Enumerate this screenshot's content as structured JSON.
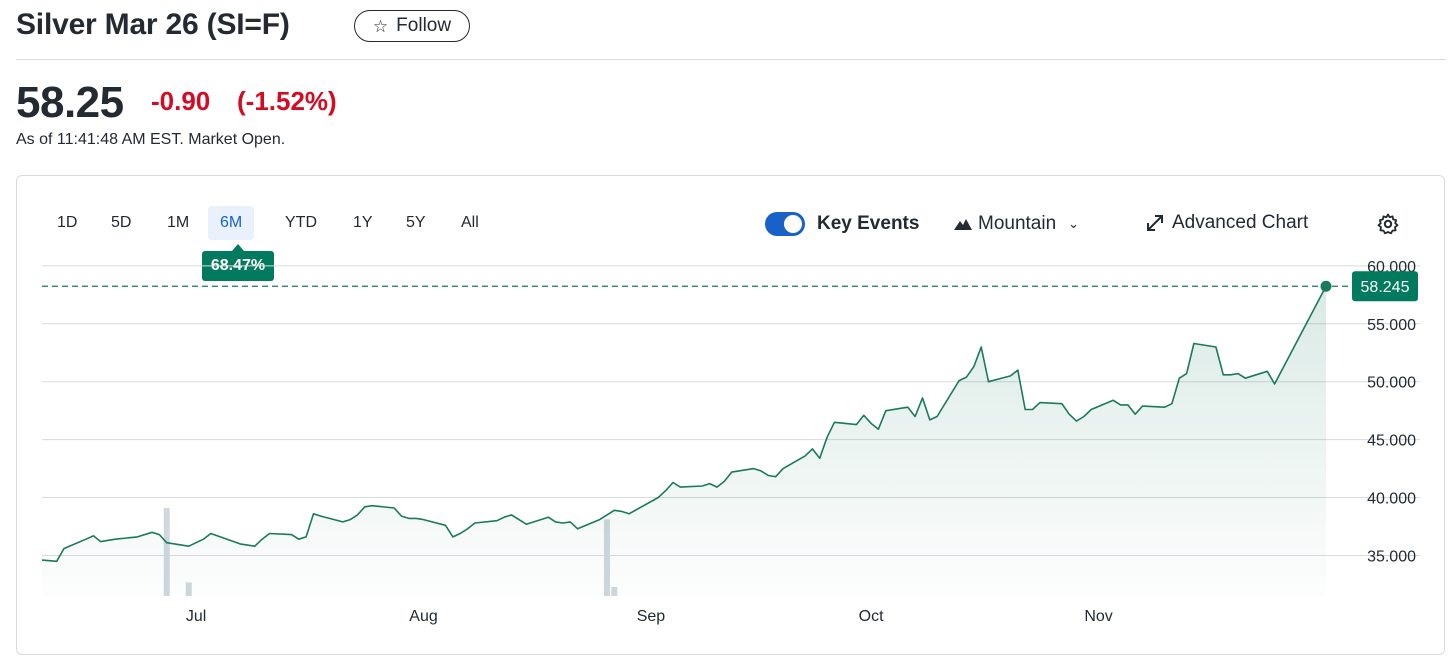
{
  "header": {
    "title": "Silver Mar 26 (SI=F)",
    "follow_label": "Follow",
    "price": "58.25",
    "change": "-0.90",
    "change_pct": "(-1.52%)",
    "as_of": "As of 11:41:48 AM EST. Market Open."
  },
  "toolbar": {
    "ranges": [
      "1D",
      "5D",
      "1M",
      "6M",
      "YTD",
      "1Y",
      "5Y",
      "All"
    ],
    "active_range": "6M",
    "range_change": "68.47%",
    "key_events_label": "Key Events",
    "key_events_on": true,
    "chart_type_label": "Mountain",
    "advanced_label": "Advanced Chart"
  },
  "colors": {
    "line": "#1a7a5e",
    "negative": "#d60a22",
    "accent": "#1861c9",
    "badge": "#017a5e"
  },
  "chart_data": {
    "type": "area",
    "ylim": [
      31.5,
      61.2
    ],
    "y_ticks": [
      "60.000",
      "55.000",
      "50.000",
      "45.000",
      "40.000",
      "35.000"
    ],
    "y_tick_values": [
      60,
      55,
      50,
      45,
      40,
      35
    ],
    "x_ticks": [
      {
        "label": "Jul",
        "date": "2025-07-01"
      },
      {
        "label": "Aug",
        "date": "2025-08-01"
      },
      {
        "label": "Sep",
        "date": "2025-09-01"
      },
      {
        "label": "Oct",
        "date": "2025-10-01"
      },
      {
        "label": "Nov",
        "date": "2025-11-01"
      }
    ],
    "last_value": "58.245",
    "last_value_num": 58.245,
    "x": [
      "2025-06-10",
      "2025-06-12",
      "2025-06-13",
      "2025-06-16",
      "2025-06-17",
      "2025-06-18",
      "2025-06-20",
      "2025-06-23",
      "2025-06-25",
      "2025-06-26",
      "2025-06-27",
      "2025-06-30",
      "2025-07-01",
      "2025-07-02",
      "2025-07-03",
      "2025-07-07",
      "2025-07-09",
      "2025-07-10",
      "2025-07-11",
      "2025-07-14",
      "2025-07-15",
      "2025-07-16",
      "2025-07-17",
      "2025-07-18",
      "2025-07-21",
      "2025-07-22",
      "2025-07-23",
      "2025-07-24",
      "2025-07-25",
      "2025-07-28",
      "2025-07-29",
      "2025-07-30",
      "2025-07-31",
      "2025-08-01",
      "2025-08-04",
      "2025-08-05",
      "2025-08-06",
      "2025-08-07",
      "2025-08-08",
      "2025-08-11",
      "2025-08-12",
      "2025-08-13",
      "2025-08-14",
      "2025-08-15",
      "2025-08-18",
      "2025-08-19",
      "2025-08-20",
      "2025-08-21",
      "2025-08-22",
      "2025-08-25",
      "2025-08-26",
      "2025-08-27",
      "2025-08-28",
      "2025-08-29",
      "2025-09-02",
      "2025-09-03",
      "2025-09-04",
      "2025-09-05",
      "2025-09-08",
      "2025-09-09",
      "2025-09-10",
      "2025-09-11",
      "2025-09-12",
      "2025-09-15",
      "2025-09-16",
      "2025-09-17",
      "2025-09-18",
      "2025-09-19",
      "2025-09-22",
      "2025-09-23",
      "2025-09-24",
      "2025-09-25",
      "2025-09-26",
      "2025-09-29",
      "2025-09-30",
      "2025-10-01",
      "2025-10-02",
      "2025-10-03",
      "2025-10-06",
      "2025-10-07",
      "2025-10-08",
      "2025-10-09",
      "2025-10-10",
      "2025-10-13",
      "2025-10-14",
      "2025-10-15",
      "2025-10-16",
      "2025-10-17",
      "2025-10-20",
      "2025-10-21",
      "2025-10-22",
      "2025-10-23",
      "2025-10-24",
      "2025-10-27",
      "2025-10-28",
      "2025-10-29",
      "2025-10-30",
      "2025-10-31",
      "2025-11-03",
      "2025-11-04",
      "2025-11-05",
      "2025-11-06",
      "2025-11-07",
      "2025-11-10",
      "2025-11-11",
      "2025-11-12",
      "2025-11-13",
      "2025-11-14",
      "2025-11-17",
      "2025-11-18",
      "2025-11-19",
      "2025-11-20",
      "2025-11-21",
      "2025-11-24",
      "2025-11-25",
      "2025-12-02"
    ],
    "series": [
      {
        "values": [
          34.6,
          34.5,
          35.6,
          36.4,
          36.7,
          36.2,
          36.4,
          36.6,
          37.0,
          36.8,
          36.1,
          35.8,
          36.1,
          36.4,
          36.9,
          36.0,
          35.8,
          36.4,
          36.9,
          36.8,
          36.4,
          36.6,
          38.6,
          38.4,
          37.9,
          38.1,
          38.5,
          39.2,
          39.3,
          39.1,
          38.4,
          38.2,
          38.2,
          38.1,
          37.6,
          36.6,
          36.9,
          37.3,
          37.8,
          38.0,
          38.3,
          38.5,
          38.1,
          37.7,
          38.3,
          37.9,
          37.8,
          37.9,
          37.3,
          38.1,
          38.5,
          38.9,
          38.8,
          38.6,
          40.0,
          40.6,
          41.3,
          40.9,
          41.0,
          41.2,
          40.9,
          41.4,
          42.2,
          42.5,
          42.3,
          41.9,
          41.8,
          42.5,
          43.6,
          44.2,
          43.4,
          45.2,
          46.5,
          46.3,
          47.1,
          46.4,
          45.9,
          47.5,
          47.8,
          47.0,
          48.6,
          46.7,
          47.0,
          50.1,
          50.4,
          51.3,
          53.0,
          50.0,
          50.5,
          51.0,
          47.6,
          47.6,
          48.2,
          48.1,
          47.2,
          46.6,
          47.0,
          47.6,
          48.4,
          48.0,
          48.0,
          47.2,
          47.9,
          47.8,
          48.1,
          50.3,
          50.7,
          53.3,
          53.0,
          50.6,
          50.6,
          50.7,
          50.3,
          50.9,
          49.8,
          58.245
        ]
      }
    ],
    "volume": [
      {
        "x": "2025-06-27",
        "rel": 0.78
      },
      {
        "x": "2025-06-30",
        "rel": 0.12
      },
      {
        "x": "2025-08-26",
        "rel": 0.68
      },
      {
        "x": "2025-08-27",
        "rel": 0.08
      }
    ]
  }
}
